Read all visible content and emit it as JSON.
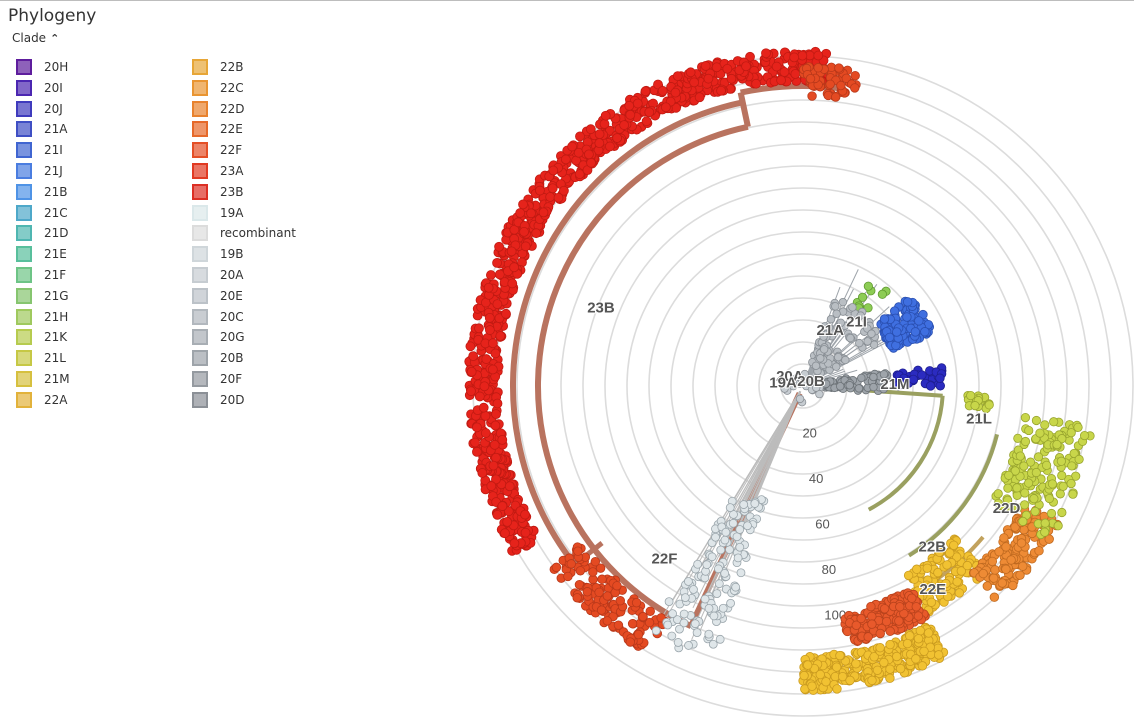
{
  "panel": {
    "title": "Phylogeny",
    "legend_toggle_label": "Clade",
    "legend_toggle_icon": "chevron-up-icon"
  },
  "legend": {
    "col1": [
      {
        "label": "20H",
        "color": "#5e1d9d"
      },
      {
        "label": "20I",
        "color": "#4b26b1"
      },
      {
        "label": "20J",
        "color": "#3f3bbd"
      },
      {
        "label": "21A",
        "color": "#3f4fc4"
      },
      {
        "label": "21I",
        "color": "#4065d1"
      },
      {
        "label": "21J",
        "color": "#4a7de0"
      },
      {
        "label": "21B",
        "color": "#4f93e6"
      },
      {
        "label": "21C",
        "color": "#4ea8c9"
      },
      {
        "label": "21D",
        "color": "#4fb6b1"
      },
      {
        "label": "21E",
        "color": "#58bf9c"
      },
      {
        "label": "21F",
        "color": "#6dc486"
      },
      {
        "label": "21G",
        "color": "#86c56f"
      },
      {
        "label": "21H",
        "color": "#9fc95e"
      },
      {
        "label": "21K",
        "color": "#b6cb4f"
      },
      {
        "label": "21L",
        "color": "#c6c845"
      },
      {
        "label": "21M",
        "color": "#d6c03f"
      },
      {
        "label": "22A",
        "color": "#e2b23b"
      }
    ],
    "col2": [
      {
        "label": "22B",
        "color": "#e7a637"
      },
      {
        "label": "22C",
        "color": "#e99532"
      },
      {
        "label": "22D",
        "color": "#e8822e"
      },
      {
        "label": "22E",
        "color": "#e6692a"
      },
      {
        "label": "22F",
        "color": "#e44f26"
      },
      {
        "label": "23A",
        "color": "#e13a22"
      },
      {
        "label": "23B",
        "color": "#dc2f24"
      },
      {
        "label": "19A",
        "color": "#dbe8ea"
      },
      {
        "label": "recombinant",
        "color": "#dcdcdc"
      },
      {
        "label": "19B",
        "color": "#cfd6da"
      },
      {
        "label": "20A",
        "color": "#c6ccd1"
      },
      {
        "label": "20E",
        "color": "#bcc2c8"
      },
      {
        "label": "20C",
        "color": "#b2b8be"
      },
      {
        "label": "20G",
        "color": "#a8aeb4"
      },
      {
        "label": "20B",
        "color": "#9ea4aa"
      },
      {
        "label": "20F",
        "color": "#959aa0"
      },
      {
        "label": "20D",
        "color": "#8b9096"
      }
    ]
  },
  "tree": {
    "radial_axis_labels": [
      "20",
      "40",
      "60",
      "80",
      "100"
    ],
    "clade_labels": [
      {
        "text": "23B",
        "angle": 200,
        "r": 215
      },
      {
        "text": "22F",
        "angle": 128,
        "r": 225
      },
      {
        "text": "22E",
        "angle": 58,
        "r": 245
      },
      {
        "text": "22B",
        "angle": 52,
        "r": 210
      },
      {
        "text": "22D",
        "angle": 32,
        "r": 240
      },
      {
        "text": "21L",
        "angle": 12,
        "r": 180
      },
      {
        "text": "21M",
        "angle": 2,
        "r": 92
      },
      {
        "text": "21A",
        "angle": -62,
        "r": 58
      },
      {
        "text": "21I",
        "angle": -48,
        "r": 80
      },
      {
        "text": "20A",
        "angle": -160,
        "r": 14
      },
      {
        "text": "20B",
        "angle": 0,
        "r": 8
      },
      {
        "text": "19A",
        "angle": 175,
        "r": 20
      }
    ]
  }
}
